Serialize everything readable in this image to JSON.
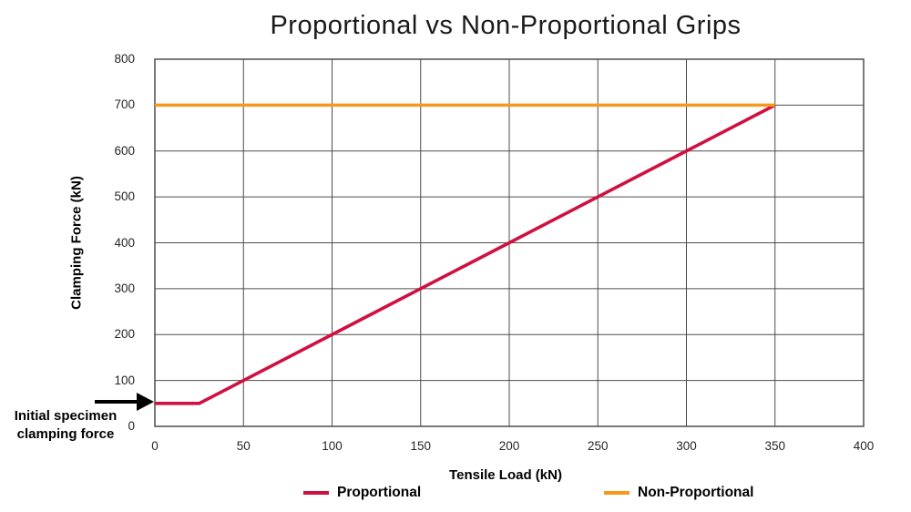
{
  "colors": {
    "grid": "#4d4d4d",
    "border": "#4d4d4d",
    "proportional": "#CE1141",
    "non_proportional": "#F7981D",
    "arrow": "#000000"
  },
  "chart_data": {
    "type": "line",
    "title": "Proportional vs Non-Proportional Grips",
    "xlabel": "Tensile Load (kN)",
    "ylabel": "Clamping Force (kN)",
    "xlim": [
      0,
      400
    ],
    "ylim": [
      0,
      800
    ],
    "xticks": [
      0,
      50,
      100,
      150,
      200,
      250,
      300,
      350,
      400
    ],
    "yticks": [
      0,
      100,
      200,
      300,
      400,
      500,
      600,
      700,
      800
    ],
    "grid": true,
    "legend_position": "bottom",
    "series": [
      {
        "name": "Proportional",
        "color": "#CE1141",
        "points": [
          [
            0,
            50
          ],
          [
            25,
            50
          ],
          [
            350,
            700
          ]
        ]
      },
      {
        "name": "Non-Proportional",
        "color": "#F7981D",
        "points": [
          [
            0,
            700
          ],
          [
            350,
            700
          ]
        ]
      }
    ],
    "annotation": {
      "line1": "Initial specimen",
      "line2": "clamping force",
      "target_value": [
        0,
        50
      ]
    }
  }
}
